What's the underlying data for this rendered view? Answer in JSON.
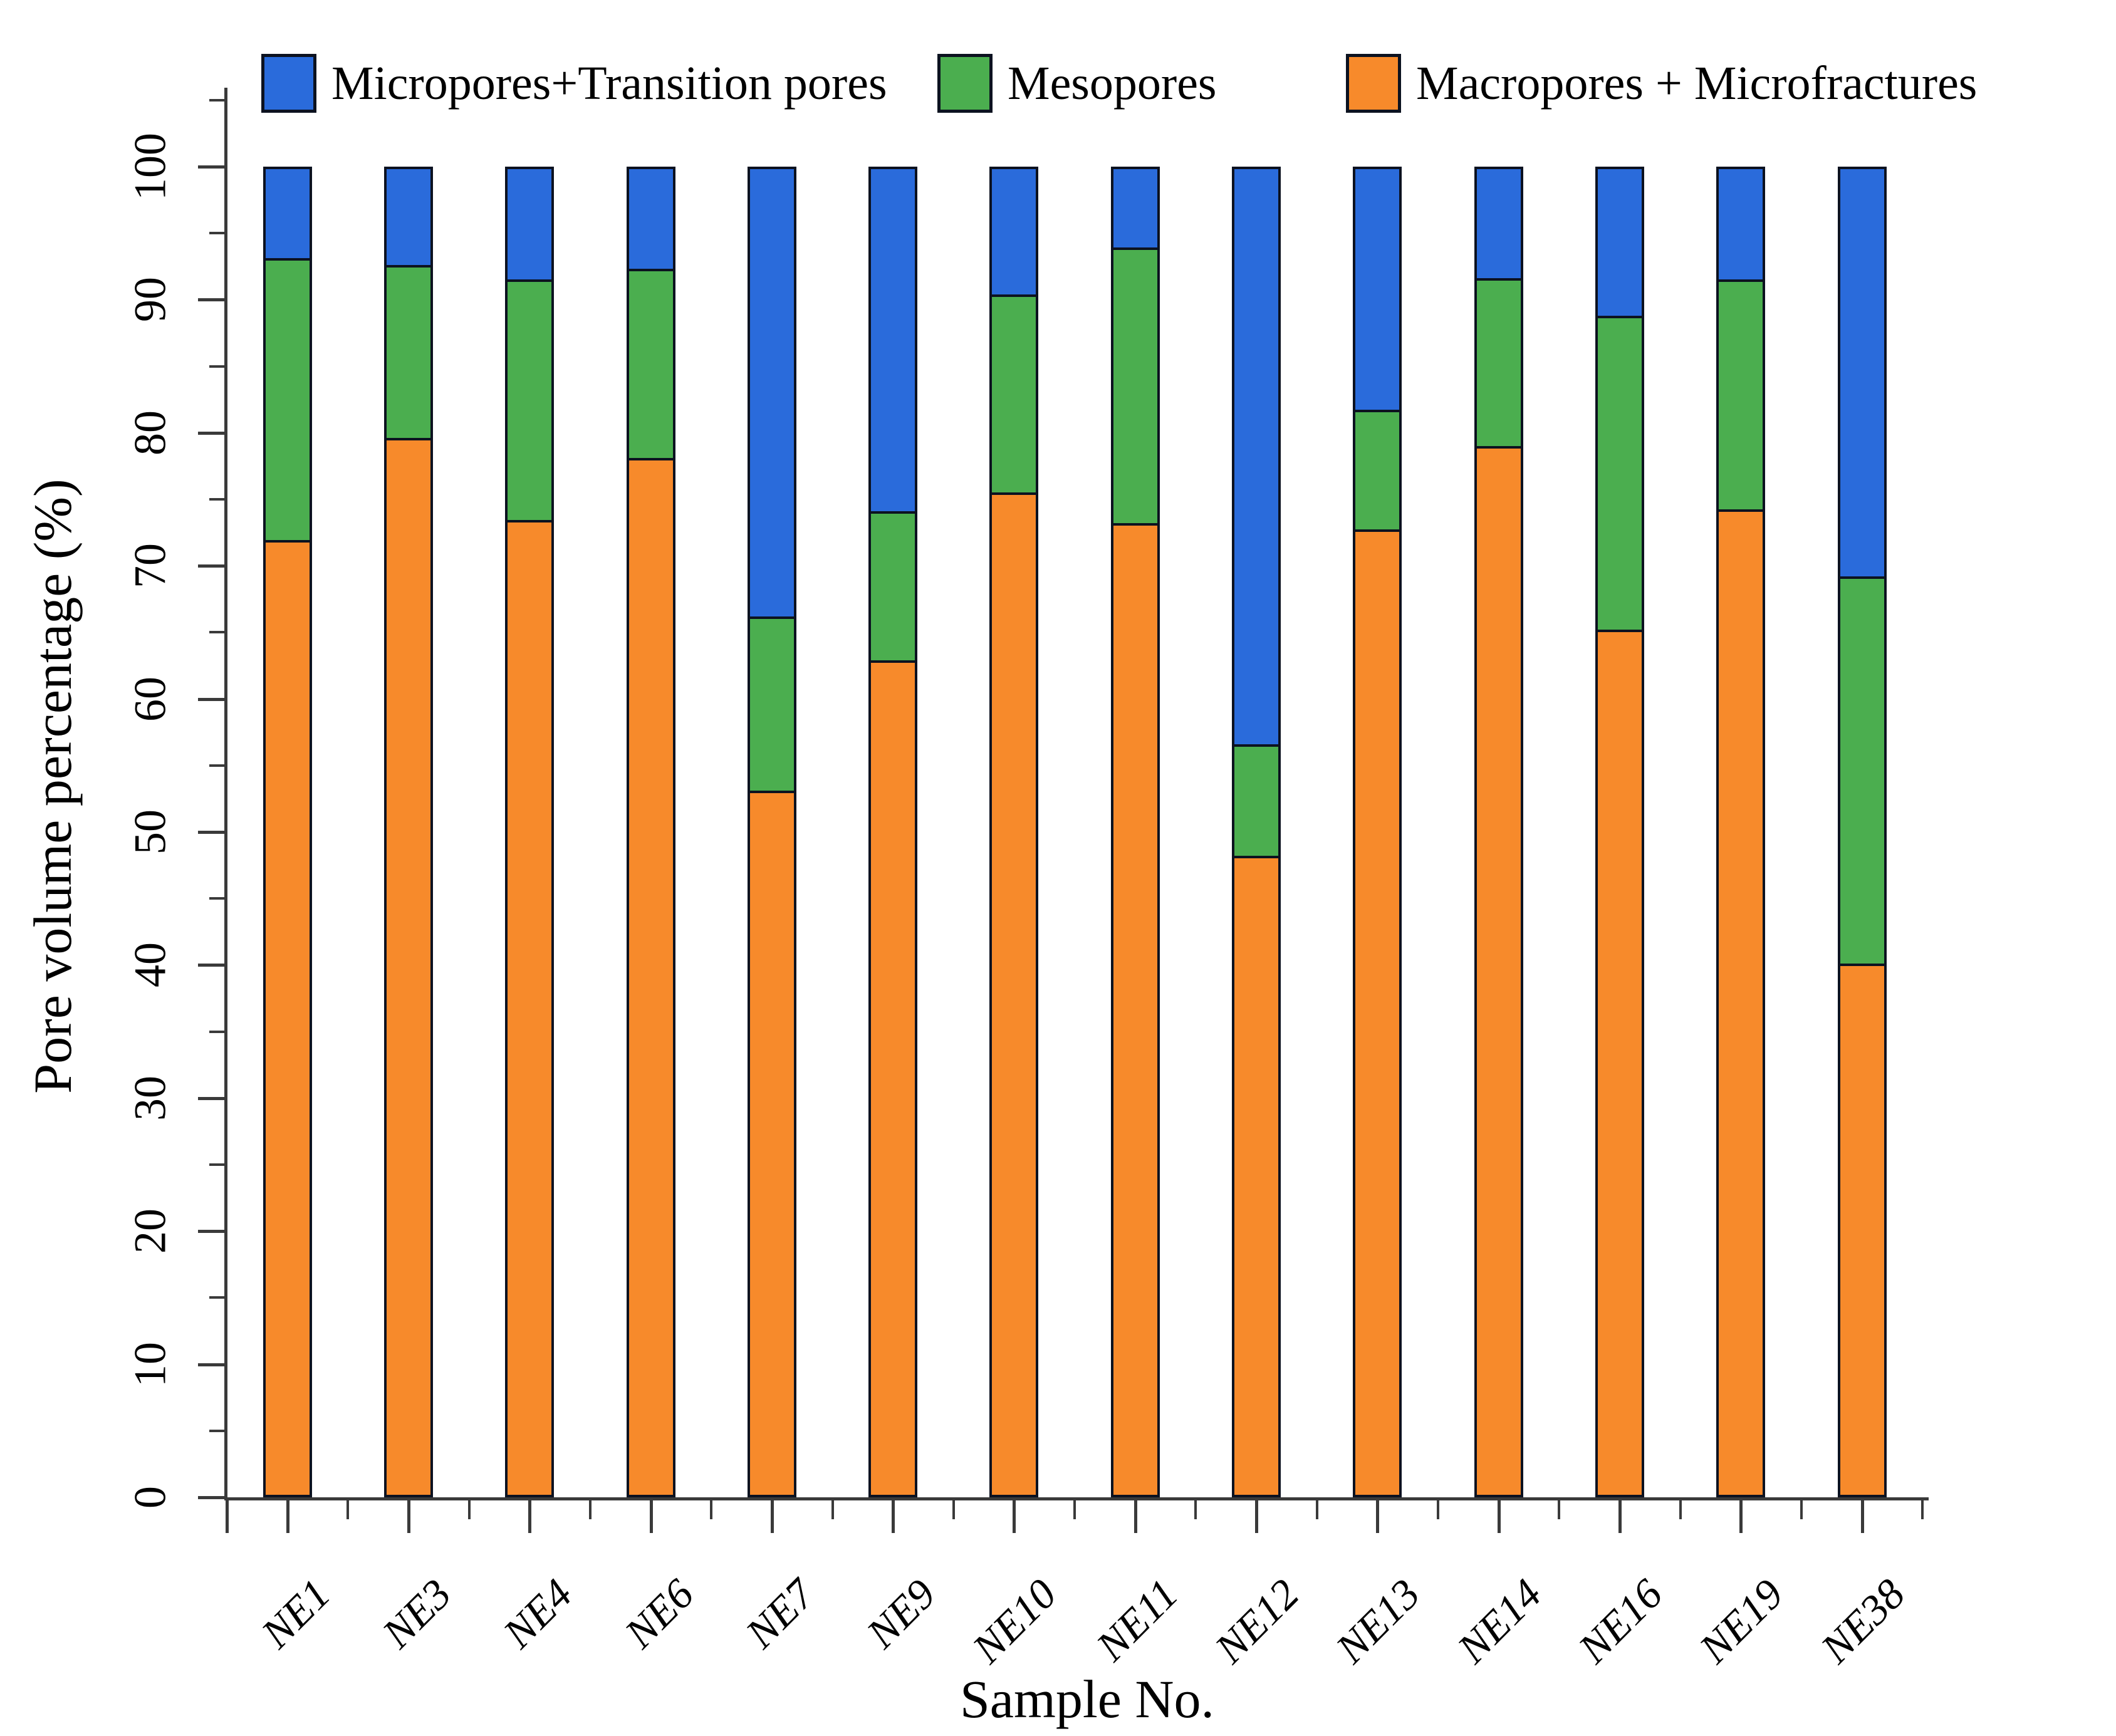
{
  "chart_data": {
    "type": "bar",
    "stacked": true,
    "title": "",
    "xlabel": "Sample No.",
    "ylabel": "Pore volume percentage (%)",
    "ylim": [
      0,
      100
    ],
    "grid": false,
    "legend_position": "top",
    "y_major_ticks": [
      0,
      10,
      20,
      30,
      40,
      50,
      60,
      70,
      80,
      90,
      100
    ],
    "y_minor_ticks": [
      5,
      15,
      25,
      35,
      45,
      55,
      65,
      75,
      85,
      95,
      105
    ],
    "categories": [
      "NE1",
      "NE3",
      "NE4",
      "NE6",
      "NE7",
      "NE9",
      "NE10",
      "NE11",
      "NE12",
      "NE13",
      "NE14",
      "NE16",
      "NE19",
      "NE38"
    ],
    "stack_order_bottom_to_top": [
      "Macropores + Microfractures",
      "Mesopores",
      "Micropores+Transition pores"
    ],
    "series": [
      {
        "name": "Micropores+Transition pores",
        "color": "#2a6bdb",
        "values": [
          6.7,
          7.2,
          8.3,
          7.5,
          33.6,
          25.7,
          9.4,
          5.9,
          43.2,
          18.1,
          8.2,
          11.0,
          8.3,
          30.6
        ]
      },
      {
        "name": "Mesopores",
        "color": "#4bae4f",
        "values": [
          21.2,
          13.0,
          18.1,
          14.2,
          13.1,
          11.2,
          14.9,
          20.7,
          8.4,
          9.0,
          12.6,
          23.6,
          17.3,
          29.1
        ]
      },
      {
        "name": "Macropores + Microfractures",
        "color": "#f78a2b",
        "values": [
          72.1,
          79.8,
          73.6,
          78.3,
          53.3,
          63.1,
          75.7,
          73.4,
          48.4,
          72.9,
          79.2,
          65.4,
          74.4,
          40.3
        ]
      }
    ]
  }
}
